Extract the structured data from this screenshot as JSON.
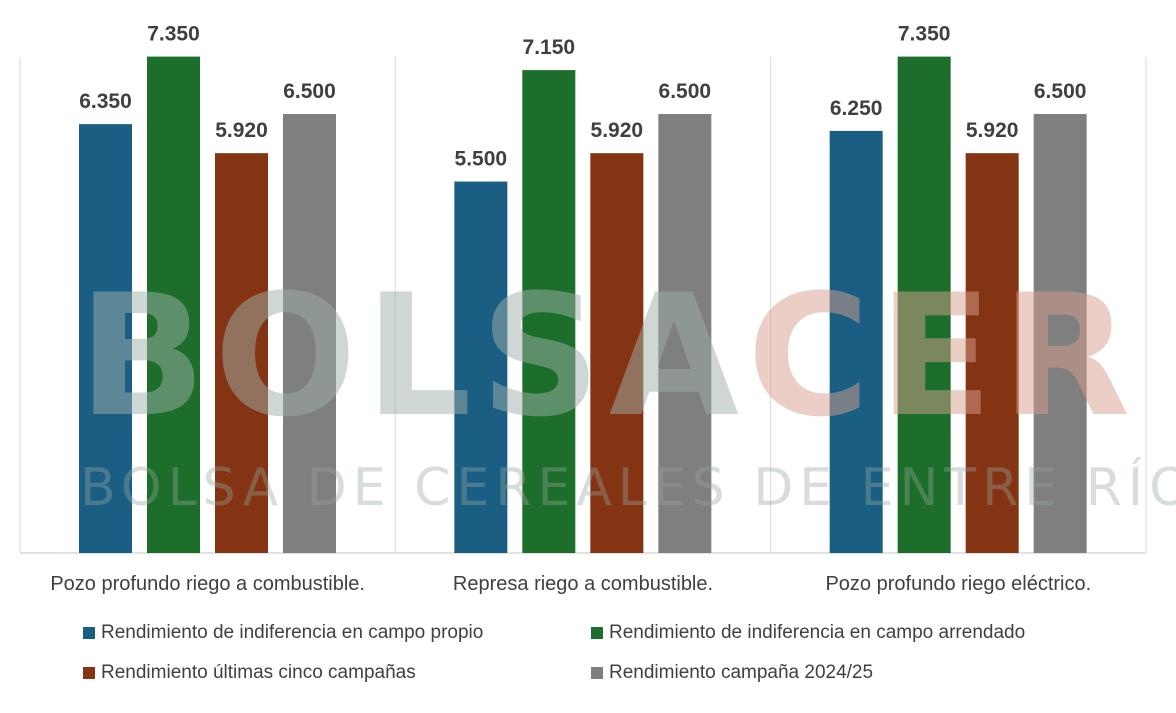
{
  "chart_data": {
    "type": "bar",
    "categories": [
      "Pozo profundo riego a combustible.",
      "Represa riego a combustible.",
      "Pozo profundo riego eléctrico."
    ],
    "series": [
      {
        "name": "Rendimiento de indiferencia en campo propio",
        "values": [
          6350,
          5500,
          6250
        ],
        "labels": [
          "6.350",
          "5.500",
          "6.250"
        ],
        "color": "#1a5f83"
      },
      {
        "name": "Rendimiento de indiferencia en campo arrendado",
        "values": [
          7350,
          7150,
          7350
        ],
        "labels": [
          "7.350",
          "7.150",
          "7.350"
        ],
        "color": "#1d6e2a"
      },
      {
        "name": "Rendimiento últimas cinco campañas",
        "values": [
          5920,
          5920,
          5920
        ],
        "labels": [
          "5.920",
          "5.920",
          "5.920"
        ],
        "color": "#843413"
      },
      {
        "name": "Rendimiento campaña 2024/25",
        "values": [
          6500,
          6500,
          6500
        ],
        "labels": [
          "6.500",
          "6.500",
          "6.500"
        ],
        "color": "#7f7f7f"
      }
    ],
    "ylim": [
      0,
      8000
    ],
    "grid": false,
    "legend": "bottom"
  },
  "watermark": {
    "logo_part1": "BOLSA",
    "logo_part2": "CER",
    "tagline": "BOLSA DE CEREALES DE ENTRE RÍOS",
    "color1": "#9fb0ab",
    "color2": "#d8a090"
  }
}
